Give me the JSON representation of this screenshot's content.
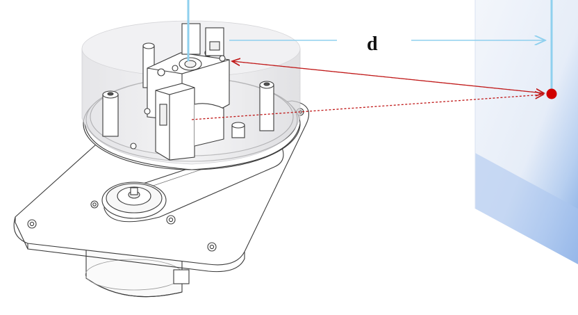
{
  "diagram": {
    "distance_label": "d"
  },
  "colors": {
    "line_stroke": "#3a3a3a",
    "housing_fill": "#e9e9ec",
    "wall_light": "#eef3fa",
    "wall_dark": "#9dbde8",
    "measure_line": "#8fd0ee",
    "laser_dash": "#c01818",
    "target_dot": "#d00000"
  }
}
